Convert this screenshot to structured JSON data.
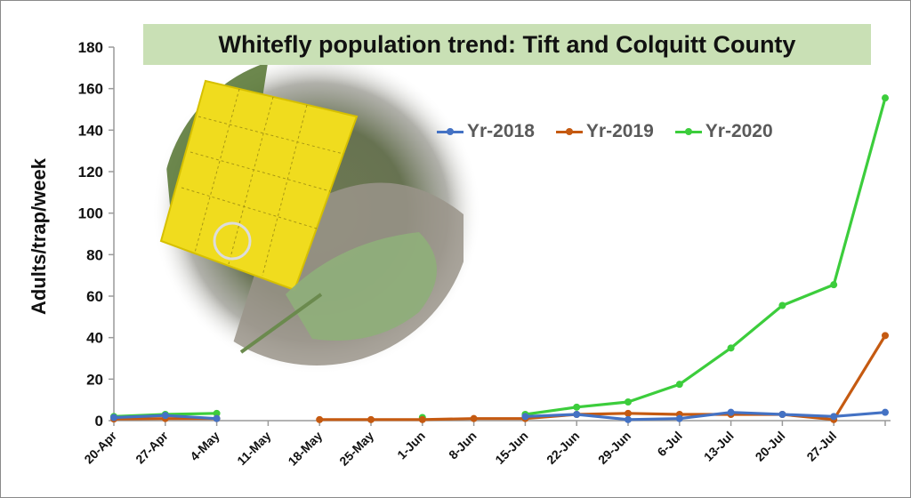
{
  "chart_data": {
    "type": "line",
    "title": "Whitefly population trend: Tift and Colquitt County",
    "ylabel": "Adults/trap/week",
    "xlabel": "",
    "ylim": [
      0,
      180
    ],
    "yticks": [
      0,
      20,
      40,
      60,
      80,
      100,
      120,
      140,
      160,
      180
    ],
    "categories": [
      "20-Apr",
      "27-Apr",
      "4-May",
      "11-May",
      "18-May",
      "25-May",
      "1-Jun",
      "8-Jun",
      "15-Jun",
      "22-Jun",
      "29-Jun",
      "6-Jul",
      "13-Jul",
      "20-Jul",
      "27-Jul",
      ""
    ],
    "legend_position": "top-right",
    "grid": false,
    "series": [
      {
        "name": "Yr-2018",
        "color": "#4472c4",
        "values": [
          1.5,
          2.5,
          1,
          null,
          null,
          null,
          null,
          null,
          2,
          3,
          0.5,
          1,
          4,
          3,
          2,
          4
        ]
      },
      {
        "name": "Yr-2019",
        "color": "#c55a11",
        "values": [
          0.8,
          1,
          1,
          null,
          0.5,
          0.5,
          0.5,
          1,
          1,
          3,
          3.5,
          3,
          3,
          3,
          0.5,
          41
        ]
      },
      {
        "name": "Yr-2020",
        "color": "#3ccd3c",
        "values": [
          2,
          3,
          3.5,
          null,
          null,
          null,
          1.5,
          null,
          3,
          6.5,
          9,
          17.5,
          35,
          55.5,
          65.5,
          155.5
        ]
      }
    ]
  }
}
